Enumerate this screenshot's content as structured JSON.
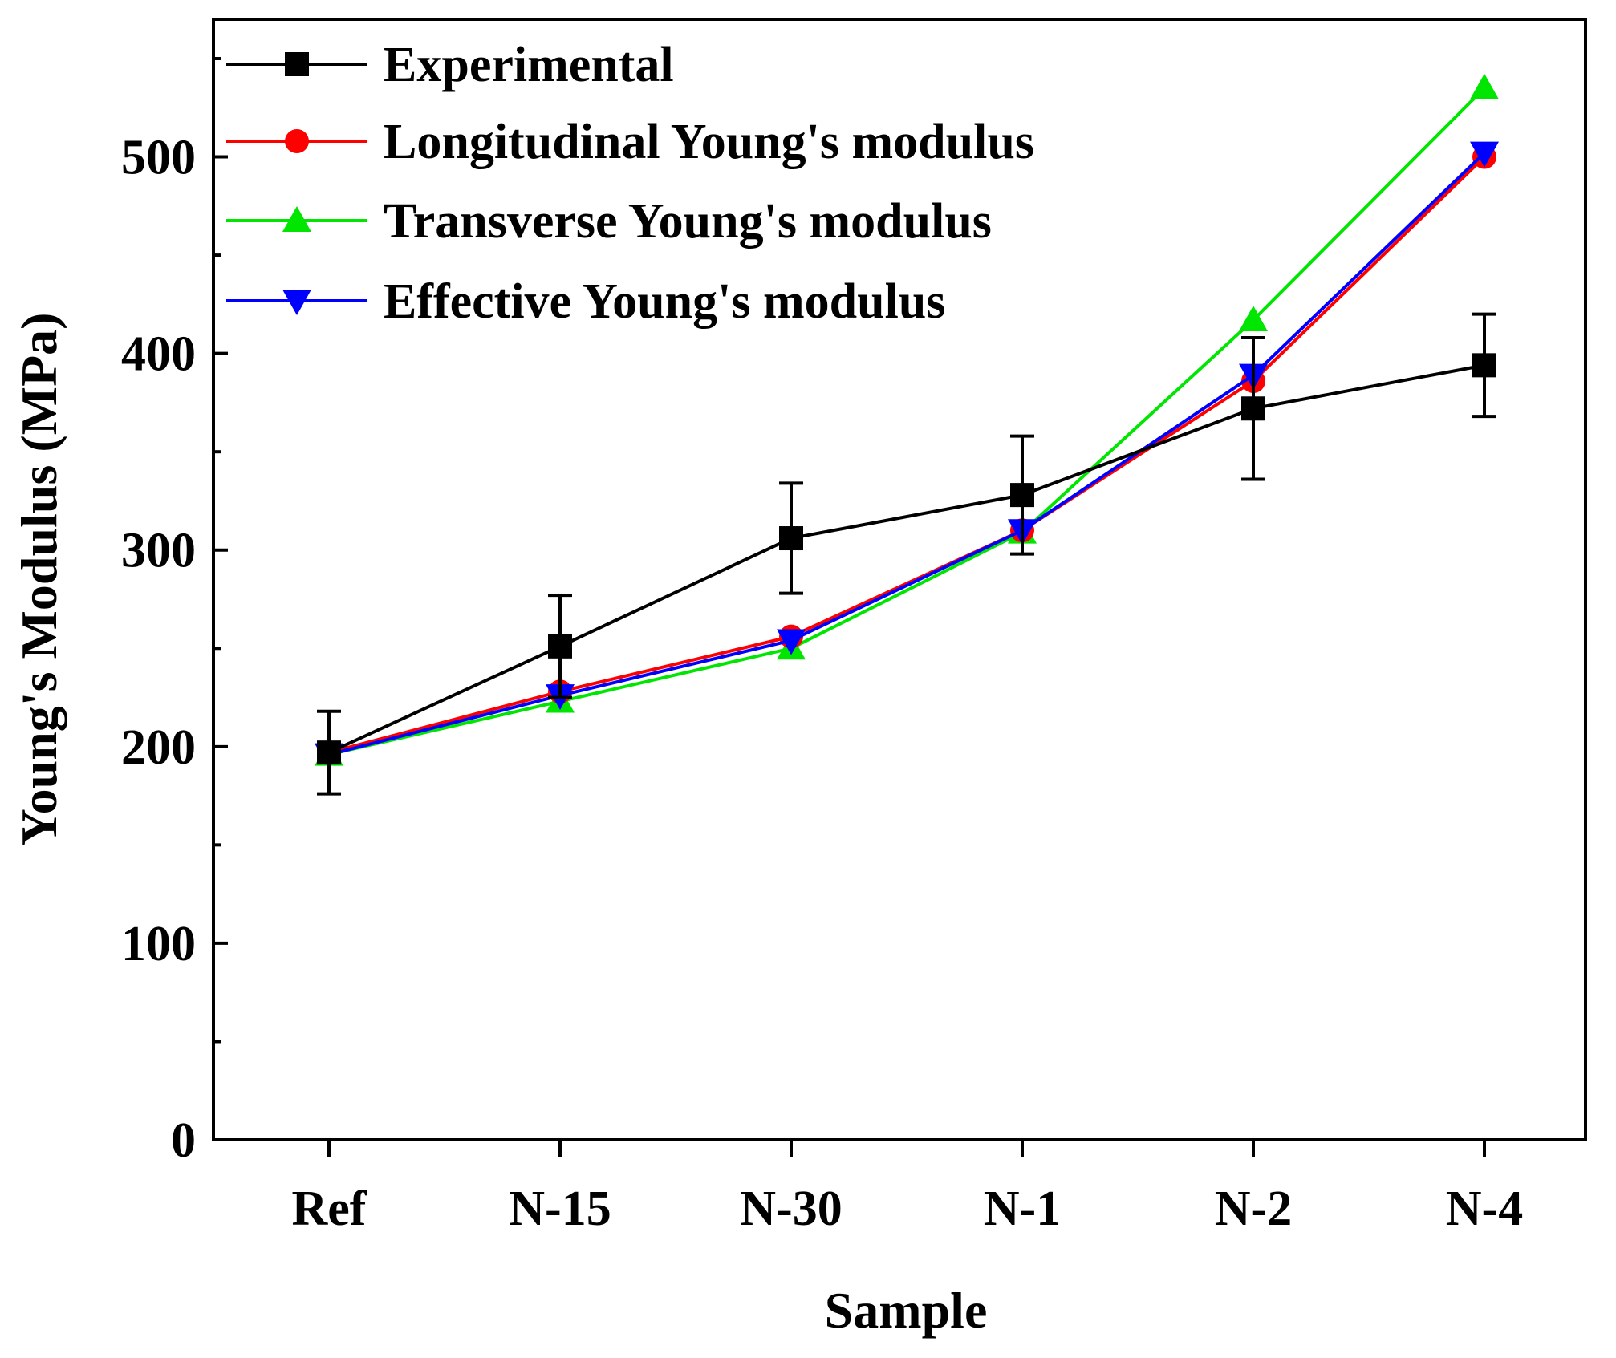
{
  "chart_data": {
    "type": "line",
    "title": "",
    "xlabel": "Sample",
    "ylabel": "Young's Modulus (MPa)",
    "categories": [
      "Ref",
      "N-15",
      "N-30",
      "N-1",
      "N-2",
      "N-4"
    ],
    "ylim": [
      0,
      570
    ],
    "yticks": [
      0,
      100,
      200,
      300,
      400,
      500
    ],
    "ytick_labels": [
      "0",
      "100",
      "200",
      "300",
      "400",
      "500"
    ],
    "grid": false,
    "legend_position": "top-left",
    "series": [
      {
        "name": "Experimental",
        "color": "#000000",
        "marker": "square",
        "values": [
          197,
          251,
          306,
          328,
          372,
          394
        ],
        "error": [
          21,
          26,
          28,
          30,
          36,
          26
        ]
      },
      {
        "name": "Longitudinal Young's modulus",
        "color": "#ff0000",
        "marker": "circle",
        "values": [
          197,
          228,
          256,
          310,
          386,
          500
        ]
      },
      {
        "name": "Transverse Young's modulus",
        "color": "#00e600",
        "marker": "triangle-up",
        "values": [
          196,
          223,
          250,
          309,
          417,
          535
        ]
      },
      {
        "name": "Effective Young's modulus",
        "color": "#0000ff",
        "marker": "triangle-down",
        "values": [
          196,
          226,
          254,
          310,
          389,
          502
        ]
      }
    ]
  }
}
